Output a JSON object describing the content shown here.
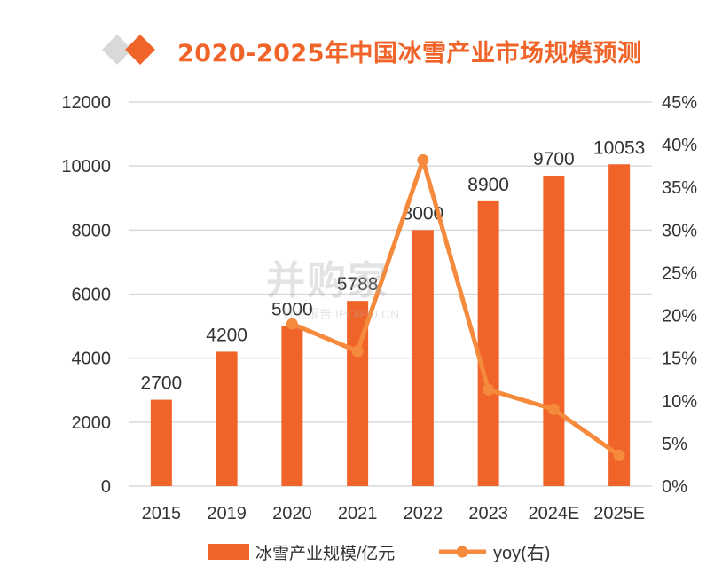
{
  "title": "2020-2025年中国冰雪产业市场规模预测",
  "watermark": {
    "main": "并购家",
    "sub": "行业报告 IPOIPO.CN"
  },
  "colors": {
    "bar": "#f0642a",
    "line": "#f58a3c",
    "grid": "#d9d9d9",
    "title": "#f0642a",
    "text": "#333333"
  },
  "chart_data": {
    "type": "bar",
    "title": "2020-2025年中国冰雪产业市场规模预测",
    "categories": [
      "2015",
      "2019",
      "2020",
      "2021",
      "2022",
      "2023",
      "2024E",
      "2025E"
    ],
    "series": [
      {
        "name": "冰雪产业规模/亿元",
        "type": "bar",
        "axis": "left",
        "values": [
          2700,
          4200,
          5000,
          5788,
          8000,
          8900,
          9700,
          10053
        ]
      },
      {
        "name": "yoy(右)",
        "type": "line",
        "axis": "right",
        "values": [
          null,
          null,
          19.0,
          15.8,
          38.2,
          11.3,
          9.0,
          3.6
        ]
      }
    ],
    "data_labels": [
      "2700",
      "4200",
      "5000",
      "5788",
      "8000",
      "8900",
      "9700",
      "10053"
    ],
    "y_left": {
      "min": 0,
      "max": 12000,
      "ticks": [
        "0",
        "2000",
        "4000",
        "6000",
        "8000",
        "10000",
        "12000"
      ]
    },
    "y_right": {
      "min": 0,
      "max": 45,
      "unit": "%",
      "ticks": [
        "0%",
        "5%",
        "10%",
        "15%",
        "20%",
        "25%",
        "30%",
        "35%",
        "40%",
        "45%"
      ]
    },
    "grid": true,
    "legend_position": "bottom"
  }
}
